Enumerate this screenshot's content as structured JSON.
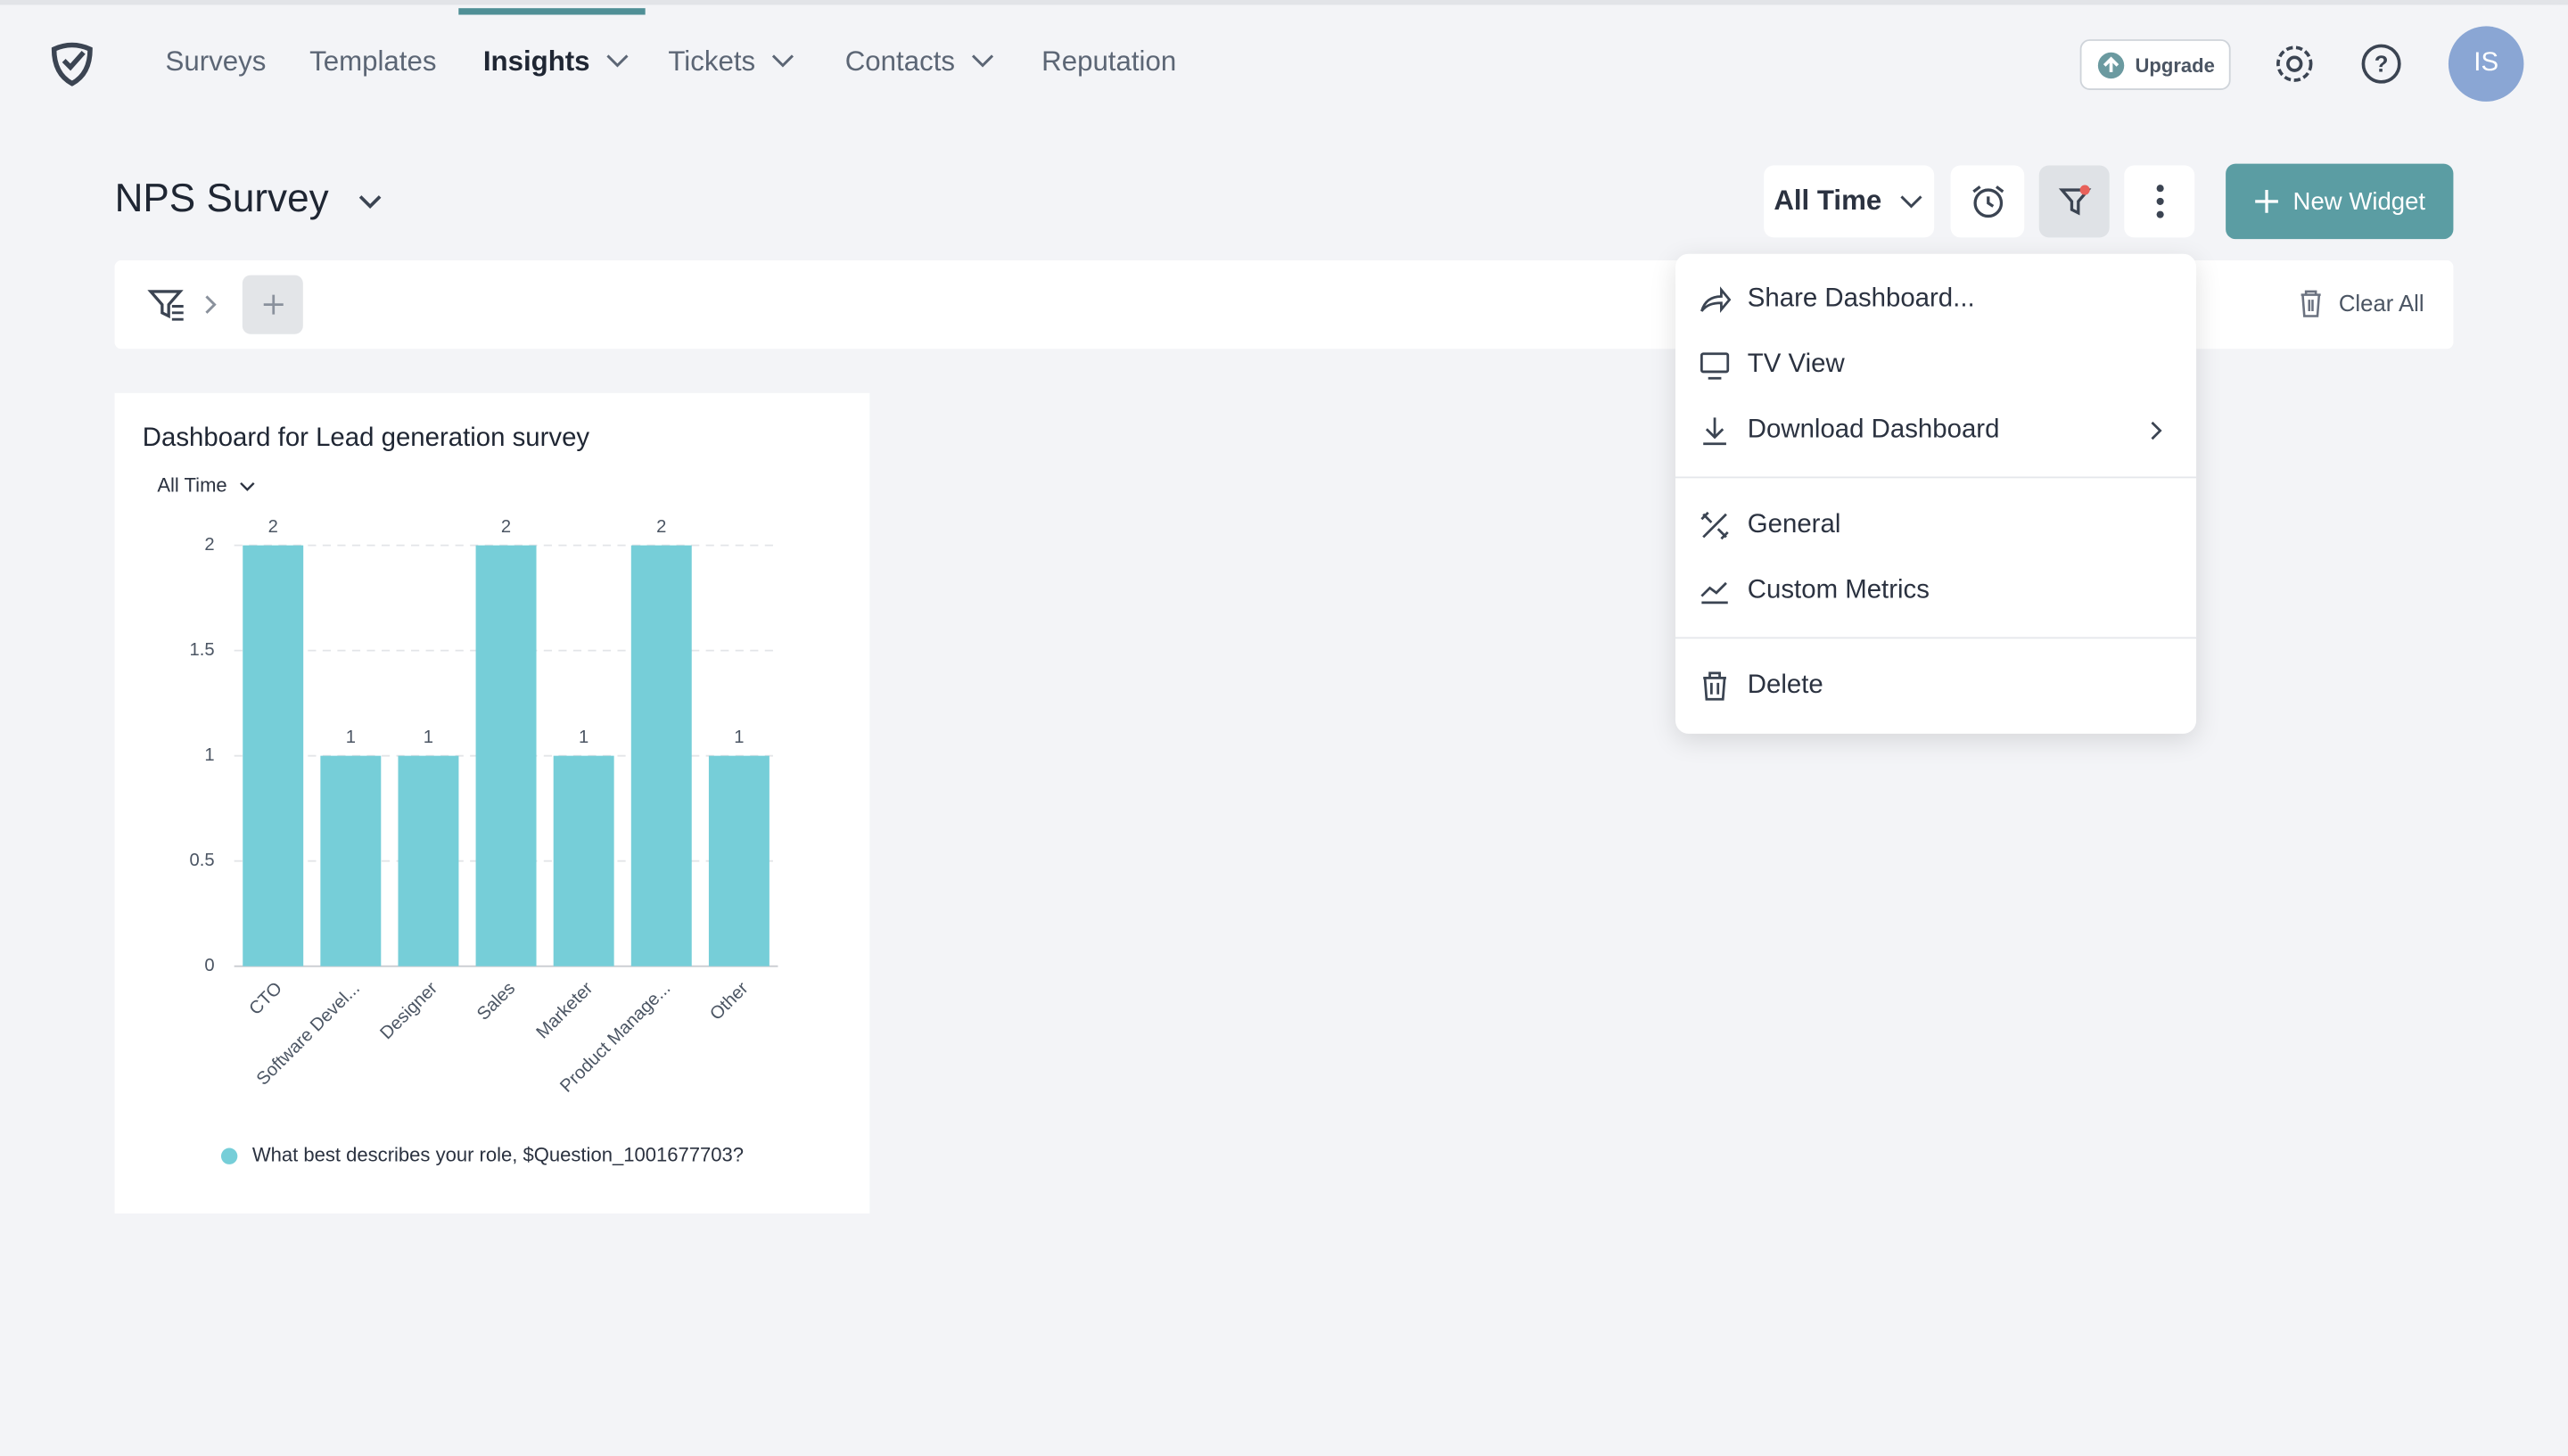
{
  "nav": {
    "items": [
      "Surveys",
      "Templates",
      "Insights",
      "Tickets",
      "Contacts",
      "Reputation"
    ],
    "upgrade": "Upgrade",
    "avatar": "IS"
  },
  "header": {
    "title": "NPS Survey",
    "time_filter": "All Time",
    "new_widget": "New Widget",
    "clear_all": "Clear All"
  },
  "menu": {
    "items": [
      "Share Dashboard...",
      "TV View",
      "Download Dashboard",
      "General",
      "Custom Metrics",
      "Delete"
    ]
  },
  "chart_data": {
    "type": "bar",
    "title": "Dashboard for Lead generation survey",
    "filter": "All Time",
    "categories": [
      "CTO",
      "Software Devel...",
      "Designer",
      "Sales",
      "Marketer",
      "Product Manage...",
      "Other"
    ],
    "series": [
      {
        "name": "What best describes your role, $Question_1001677703?",
        "color": "#76ced8",
        "values": [
          2,
          1,
          1,
          2,
          1,
          2,
          1
        ]
      }
    ],
    "ylim": [
      0,
      2
    ],
    "yticks": [
      0,
      0.5,
      1,
      1.5,
      2
    ],
    "grid": true
  }
}
